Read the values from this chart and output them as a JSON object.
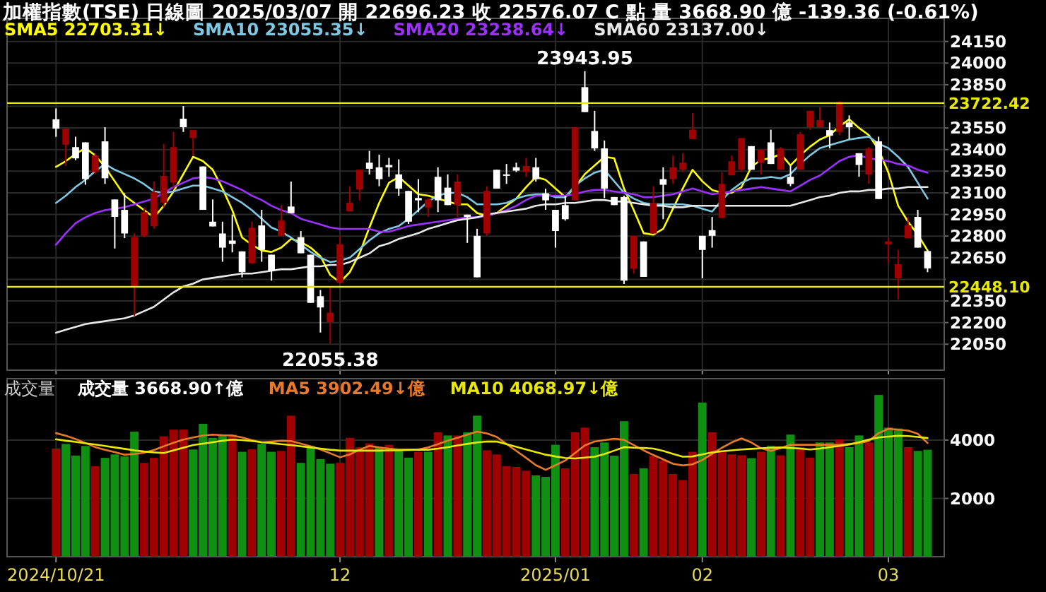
{
  "chart_data": [
    {
      "type": "candlestick",
      "title": "加權指數(TSE)   日線圖   2025/03/07   開 22696.23   收 22576.07 C 點   量 3668.90 億   -139.36 (-0.61%)",
      "categories": [
        "2024/10/21",
        null,
        null,
        null,
        null,
        null,
        null,
        null,
        null,
        null,
        null,
        null,
        null,
        null,
        null,
        null,
        null,
        null,
        null,
        null,
        null,
        null,
        null,
        null,
        null,
        null,
        null,
        null,
        null,
        "12",
        null,
        null,
        null,
        null,
        null,
        null,
        null,
        null,
        null,
        null,
        null,
        null,
        null,
        null,
        null,
        null,
        null,
        null,
        null,
        null,
        null,
        "2025/01",
        null,
        null,
        null,
        null,
        null,
        null,
        null,
        null,
        null,
        null,
        null,
        null,
        null,
        null,
        "02",
        null,
        null,
        null,
        null,
        null,
        null,
        null,
        null,
        null,
        null,
        null,
        null,
        null,
        null,
        null,
        null,
        null,
        null,
        "03",
        null,
        null,
        null,
        null
      ],
      "ohlc": [
        [
          23610,
          23686,
          23489,
          23545
        ],
        [
          23434,
          23545,
          23286,
          23545
        ],
        [
          23417,
          23489,
          23326,
          23339
        ],
        [
          23450,
          23450,
          23156,
          23195
        ],
        [
          23244,
          23375,
          23228,
          23358
        ],
        [
          23457,
          23555,
          23162,
          23201
        ],
        [
          23054,
          23054,
          22714,
          22933
        ],
        [
          22982,
          23097,
          22786,
          22818
        ],
        [
          22449,
          22818,
          22246,
          22792
        ],
        [
          22802,
          22998,
          22792,
          22966
        ],
        [
          22868,
          23178,
          22851,
          23103
        ],
        [
          23031,
          23440,
          22998,
          23218
        ],
        [
          23172,
          23522,
          23129,
          23417
        ],
        [
          23614,
          23702,
          23522,
          23555
        ],
        [
          23480,
          23535,
          23358,
          23535
        ],
        [
          23283,
          23283,
          22982,
          22982
        ],
        [
          22900,
          23054,
          22867,
          22867
        ],
        [
          22818,
          22900,
          22622,
          22720
        ],
        [
          22769,
          22949,
          22687,
          22746
        ],
        [
          22694,
          22694,
          22514,
          22550
        ],
        [
          22612,
          22900,
          22606,
          22858
        ],
        [
          22874,
          22982,
          22622,
          22704
        ],
        [
          22671,
          22671,
          22491,
          22557
        ],
        [
          22802,
          23015,
          22802,
          22907
        ],
        [
          23005,
          23178,
          22959,
          22959
        ],
        [
          22792,
          22835,
          22681,
          22681
        ],
        [
          22671,
          22671,
          22337,
          22337
        ],
        [
          22383,
          22426,
          22131,
          22305
        ],
        [
          22203,
          22442,
          22055.38,
          22269
        ],
        [
          22475,
          22802,
          22475,
          22743
        ],
        [
          22972,
          23146,
          22972,
          23031
        ],
        [
          23123,
          23260,
          23048,
          23260
        ],
        [
          23309,
          23391,
          23228,
          23267
        ],
        [
          23277,
          23365,
          23146,
          23195
        ],
        [
          23293,
          23342,
          23211,
          23277
        ],
        [
          23228,
          23332,
          23080,
          23129
        ],
        [
          23113,
          23113,
          22884,
          22900
        ],
        [
          23064,
          23195,
          22966,
          23048
        ],
        [
          22998,
          23064,
          22933,
          23054
        ],
        [
          23211,
          23277,
          22966,
          23048
        ],
        [
          23136,
          23228,
          23015,
          23015
        ],
        [
          23015,
          23228,
          22933,
          23178
        ],
        [
          22949,
          22949,
          22753,
          22933
        ],
        [
          22802,
          22851,
          22514,
          22514
        ],
        [
          22818,
          23146,
          22802,
          23113
        ],
        [
          23260,
          23260,
          23129,
          23129
        ],
        [
          23228,
          23300,
          23162,
          23218
        ],
        [
          23277,
          23309,
          23244,
          23254
        ],
        [
          23244,
          23342,
          23211,
          23286
        ],
        [
          23277,
          23342,
          23178,
          23195
        ],
        [
          23097,
          23129,
          22982,
          23048
        ],
        [
          22982,
          22982,
          22720,
          22835
        ],
        [
          23015,
          23080,
          22907,
          22917
        ],
        [
          23048,
          23555,
          23048,
          23555
        ],
        [
          23833,
          23943.95,
          23660,
          23660
        ],
        [
          23529,
          23669,
          23391,
          23408
        ],
        [
          23408,
          23463,
          23064,
          23129
        ],
        [
          23071,
          23071,
          23015,
          23015
        ],
        [
          23071,
          23080,
          22468,
          22491
        ],
        [
          22573,
          22802,
          22540,
          22802
        ],
        [
          22763,
          22763,
          22517,
          22517
        ],
        [
          22818,
          23146,
          22818,
          23031
        ],
        [
          23195,
          23277,
          22917,
          23156
        ],
        [
          23195,
          23358,
          23162,
          23277
        ],
        [
          23260,
          23375,
          23244,
          23309
        ],
        [
          23473,
          23653,
          23473,
          23538
        ],
        [
          22802,
          22802,
          22507,
          22704
        ],
        [
          22841,
          22933,
          22720,
          22802
        ],
        [
          22926,
          23244,
          22926,
          23162
        ],
        [
          23221,
          23358,
          23221,
          23319
        ],
        [
          23260,
          23480,
          23244,
          23480
        ],
        [
          23424,
          23424,
          23260,
          23260
        ],
        [
          23309,
          23398,
          23228,
          23398
        ],
        [
          23450,
          23538,
          23300,
          23300
        ],
        [
          23260,
          23417,
          23260,
          23408
        ],
        [
          23211,
          23293,
          23146,
          23162
        ],
        [
          23260,
          23522,
          23260,
          23506
        ],
        [
          23555,
          23669,
          23538,
          23669
        ],
        [
          23555,
          23692,
          23555,
          23604
        ],
        [
          23535,
          23588,
          23408,
          23496
        ],
        [
          23522,
          23735,
          23500,
          23730
        ],
        [
          23588,
          23637,
          23473,
          23555
        ],
        [
          23375,
          23375,
          23211,
          23293
        ],
        [
          23228,
          23417,
          23162,
          23408
        ],
        [
          23457,
          23489,
          23057,
          23057
        ],
        [
          22743,
          22786,
          22612,
          22763
        ],
        [
          22507,
          22704,
          22360,
          22606
        ],
        [
          22786,
          22933,
          22786,
          22874
        ],
        [
          22933,
          22982,
          22720,
          22720
        ],
        [
          22696.23,
          22704,
          22550,
          22576.07
        ]
      ],
      "colors": [
        "#ffffff",
        "#a00000",
        "#ffffff",
        "#ffffff",
        "#a00000",
        "#ffffff",
        "#ffffff",
        "#ffffff",
        "#a00000",
        "#a00000",
        "#a00000",
        "#a00000",
        "#a00000",
        "#ffffff",
        "#a00000",
        "#ffffff",
        "#ffffff",
        "#ffffff",
        "#ffffff",
        "#ffffff",
        "#a00000",
        "#ffffff",
        "#ffffff",
        "#a00000",
        "#ffffff",
        "#ffffff",
        "#ffffff",
        "#ffffff",
        "#a00000",
        "#a00000",
        "#a00000",
        "#a00000",
        "#ffffff",
        "#ffffff",
        "#ffffff",
        "#ffffff",
        "#ffffff",
        "#ffffff",
        "#a00000",
        "#ffffff",
        "#ffffff",
        "#a00000",
        "#ffffff",
        "#ffffff",
        "#a00000",
        "#ffffff",
        "#ffffff",
        "#ffffff",
        "#a00000",
        "#ffffff",
        "#ffffff",
        "#ffffff",
        "#ffffff",
        "#a00000",
        "#ffffff",
        "#ffffff",
        "#ffffff",
        "#ffffff",
        "#ffffff",
        "#a00000",
        "#ffffff",
        "#a00000",
        "#ffffff",
        "#a00000",
        "#a00000",
        "#a00000",
        "#ffffff",
        "#ffffff",
        "#a00000",
        "#a00000",
        "#a00000",
        "#ffffff",
        "#a00000",
        "#ffffff",
        "#a00000",
        "#ffffff",
        "#a00000",
        "#a00000",
        "#a00000",
        "#ffffff",
        "#a00000",
        "#ffffff",
        "#ffffff",
        "#a00000",
        "#ffffff",
        "#a00000",
        "#a00000",
        "#a00000",
        "#ffffff",
        "#ffffff"
      ],
      "series": [
        {
          "type": "line",
          "name": "SMA5 22703.31↓",
          "color": "#ffff00",
          "values": [
            23280,
            23320,
            23370,
            23410,
            23360,
            23280,
            23180,
            23080,
            23030,
            22980,
            22930,
            23010,
            23110,
            23230,
            23350,
            23320,
            23260,
            23130,
            22980,
            22790,
            22740,
            22700,
            22690,
            22720,
            22780,
            22760,
            22720,
            22660,
            22530,
            22480,
            22550,
            22680,
            22860,
            23030,
            23170,
            23210,
            23150,
            23090,
            23080,
            23060,
            23040,
            23020,
            23020,
            22960,
            22940,
            22960,
            23010,
            23060,
            23140,
            23210,
            23190,
            23130,
            23070,
            23140,
            23230,
            23290,
            23350,
            23340,
            23130,
            22980,
            22820,
            22810,
            22850,
            22990,
            23130,
            23260,
            23180,
            23120,
            23100,
            23100,
            23140,
            23280,
            23330,
            23340,
            23370,
            23290,
            23360,
            23420,
            23470,
            23500,
            23560,
            23610,
            23550,
            23500,
            23400,
            23240,
            23010,
            22900,
            22810,
            22700
          ]
        },
        {
          "type": "line",
          "name": "SMA10 23055.35↓",
          "color": "#7ec8e3",
          "values": [
            23030,
            23080,
            23140,
            23190,
            23250,
            23300,
            23260,
            23230,
            23200,
            23160,
            23110,
            23100,
            23110,
            23130,
            23150,
            23150,
            23130,
            23110,
            23070,
            23030,
            22980,
            22920,
            22860,
            22830,
            22790,
            22740,
            22690,
            22650,
            22620,
            22630,
            22650,
            22710,
            22770,
            22820,
            22850,
            22870,
            22920,
            22980,
            23040,
            23080,
            23100,
            23100,
            23070,
            23020,
            23020,
            23020,
            23030,
            23060,
            23080,
            23090,
            23090,
            23070,
            23070,
            23150,
            23200,
            23240,
            23260,
            23180,
            23100,
            23060,
            23030,
            23020,
            23020,
            23020,
            23020,
            23010,
            22990,
            22970,
            23050,
            23120,
            23170,
            23200,
            23200,
            23210,
            23200,
            23230,
            23300,
            23360,
            23410,
            23430,
            23450,
            23470,
            23480,
            23490,
            23440,
            23410,
            23350,
            23280,
            23170,
            23060
          ]
        },
        {
          "type": "line",
          "name": "SMA20 23238.64↓",
          "color": "#9b30ff",
          "values": [
            22740,
            22820,
            22890,
            22930,
            22960,
            22980,
            22990,
            23000,
            23020,
            23040,
            23060,
            23100,
            23140,
            23170,
            23200,
            23210,
            23200,
            23180,
            23150,
            23120,
            23080,
            23050,
            23010,
            22980,
            22960,
            22920,
            22900,
            22880,
            22860,
            22850,
            22850,
            22850,
            22850,
            22830,
            22830,
            22850,
            22870,
            22880,
            22890,
            22900,
            22910,
            22920,
            22930,
            22930,
            22940,
            22960,
            22980,
            23010,
            23050,
            23080,
            23080,
            23080,
            23080,
            23090,
            23110,
            23120,
            23120,
            23110,
            23100,
            23090,
            23070,
            23070,
            23080,
            23090,
            23110,
            23130,
            23110,
            23090,
            23100,
            23110,
            23120,
            23130,
            23140,
            23130,
            23120,
            23110,
            23150,
            23190,
            23220,
            23270,
            23320,
            23350,
            23360,
            23340,
            23330,
            23320,
            23300,
            23290,
            23260,
            23240
          ]
        },
        {
          "type": "line",
          "name": "SMA60 23137.00↓",
          "color": "#e8e8e8",
          "values": [
            22130,
            22150,
            22170,
            22190,
            22200,
            22210,
            22220,
            22230,
            22250,
            22280,
            22310,
            22360,
            22410,
            22450,
            22470,
            22500,
            22510,
            22520,
            22530,
            22540,
            22540,
            22550,
            22560,
            22570,
            22570,
            22580,
            22590,
            22590,
            22600,
            22600,
            22620,
            22650,
            22680,
            22730,
            22750,
            22780,
            22800,
            22820,
            22850,
            22870,
            22890,
            22910,
            22920,
            22930,
            22950,
            22960,
            22970,
            22980,
            22990,
            23010,
            23020,
            23020,
            23030,
            23030,
            23040,
            23050,
            23050,
            23040,
            23040,
            23030,
            23020,
            23010,
            23010,
            23000,
            23000,
            23010,
            23010,
            23010,
            23010,
            23010,
            23010,
            23010,
            23010,
            23010,
            23010,
            23010,
            23030,
            23050,
            23070,
            23080,
            23100,
            23110,
            23110,
            23120,
            23120,
            23130,
            23130,
            23140,
            23140,
            23140
          ]
        }
      ],
      "ylim": [
        21870,
        24310
      ],
      "yticks": [
        22050,
        22200,
        22350,
        {
          "value": 22500,
          "label": null
        },
        22650,
        22800,
        22950,
        23100,
        23250,
        23400,
        23550,
        {
          "value": 23700,
          "label": null
        },
        23850,
        24000,
        24150
      ],
      "ref_lines": [
        {
          "axis": "y",
          "value": 23722.42,
          "label": "23722.42",
          "color": "#e8e800"
        },
        {
          "axis": "y",
          "value": 22448.1,
          "label": "22448.10",
          "color": "#e8e800"
        }
      ],
      "annotations": [
        {
          "text": "23943.95",
          "y": 23943.95
        },
        {
          "text": "22055.38",
          "y": 22055.38
        }
      ],
      "grid": true,
      "legend": "top left",
      "tick_labels": "y"
    },
    {
      "type": "bar",
      "title": "成交量",
      "subtitle": "成交量 3668.90↑億",
      "categories": [
        "2024/10/21",
        null,
        null,
        null,
        null,
        null,
        null,
        null,
        null,
        null,
        null,
        null,
        null,
        null,
        null,
        null,
        null,
        null,
        null,
        null,
        null,
        null,
        null,
        null,
        null,
        null,
        null,
        null,
        null,
        "12",
        null,
        null,
        null,
        null,
        null,
        null,
        null,
        null,
        null,
        null,
        null,
        null,
        null,
        null,
        null,
        null,
        null,
        null,
        null,
        null,
        null,
        "2025/01",
        null,
        null,
        null,
        null,
        null,
        null,
        null,
        null,
        null,
        null,
        null,
        null,
        null,
        null,
        "02",
        null,
        null,
        null,
        null,
        null,
        null,
        null,
        null,
        null,
        null,
        null,
        null,
        null,
        null,
        null,
        null,
        null,
        null,
        "03",
        null,
        null,
        null,
        null
      ],
      "series": [
        {
          "type": "bar",
          "values": [
            3710,
            3870,
            3470,
            3800,
            3110,
            3390,
            3510,
            3440,
            4290,
            3220,
            3390,
            4130,
            4360,
            4360,
            3680,
            4560,
            4080,
            4160,
            4190,
            3600,
            3680,
            3870,
            3600,
            3630,
            4840,
            3220,
            3800,
            3350,
            3190,
            3220,
            4080,
            3760,
            3890,
            3760,
            3840,
            3630,
            3400,
            3600,
            3600,
            4270,
            4160,
            4160,
            4270,
            4840,
            3650,
            3510,
            3110,
            3080,
            2950,
            2790,
            2740,
            3840,
            3030,
            4270,
            4430,
            3760,
            3920,
            3470,
            4650,
            2840,
            3030,
            3470,
            3310,
            2840,
            2630,
            3600,
            5290,
            4270,
            3630,
            3510,
            3480,
            3380,
            3600,
            3800,
            3480,
            4190,
            3760,
            3400,
            3920,
            3920,
            4030,
            3760,
            4160,
            3920,
            5550,
            4430,
            4400,
            3760,
            3630,
            3670
          ],
          "colors": [
            "#a00000",
            "#109010",
            "#109010",
            "#109010",
            "#a00000",
            "#109010",
            "#109010",
            "#109010",
            "#109010",
            "#a00000",
            "#a00000",
            "#a00000",
            "#a00000",
            "#a00000",
            "#109010",
            "#109010",
            "#109010",
            "#109010",
            "#a00000",
            "#109010",
            "#a00000",
            "#109010",
            "#109010",
            "#a00000",
            "#a00000",
            "#109010",
            "#109010",
            "#109010",
            "#109010",
            "#a00000",
            "#a00000",
            "#a00000",
            "#a00000",
            "#109010",
            "#a00000",
            "#109010",
            "#109010",
            "#a00000",
            "#109010",
            "#a00000",
            "#109010",
            "#a00000",
            "#109010",
            "#109010",
            "#a00000",
            "#a00000",
            "#a00000",
            "#a00000",
            "#a00000",
            "#109010",
            "#109010",
            "#109010",
            "#a00000",
            "#a00000",
            "#a00000",
            "#109010",
            "#109010",
            "#109010",
            "#109010",
            "#a00000",
            "#109010",
            "#a00000",
            "#a00000",
            "#a00000",
            "#a00000",
            "#a00000",
            "#109010",
            "#a00000",
            "#a00000",
            "#a00000",
            "#a00000",
            "#109010",
            "#a00000",
            "#109010",
            "#a00000",
            "#109010",
            "#a00000",
            "#a00000",
            "#109010",
            "#109010",
            "#a00000",
            "#109010",
            "#109010",
            "#a00000",
            "#109010",
            "#109010",
            "#109010",
            "#a00000",
            "#109010",
            "#109010"
          ]
        },
        {
          "type": "line",
          "name": "MA5 3902.49↓億",
          "color": "#e8792a",
          "values": [
            4240,
            4150,
            4040,
            3900,
            3760,
            3670,
            3590,
            3500,
            3520,
            3570,
            3660,
            3790,
            3910,
            4020,
            4090,
            4160,
            4190,
            4170,
            4160,
            4090,
            4000,
            3920,
            3950,
            3980,
            3970,
            3880,
            3790,
            3680,
            3550,
            3410,
            3510,
            3670,
            3800,
            3750,
            3710,
            3680,
            3680,
            3680,
            3750,
            3860,
            3980,
            4080,
            4190,
            4290,
            4230,
            4110,
            3870,
            3630,
            3390,
            3140,
            2980,
            3140,
            3300,
            3560,
            3820,
            3950,
            4000,
            4050,
            4010,
            3830,
            3650,
            3490,
            3340,
            3190,
            3130,
            3170,
            3320,
            3530,
            3740,
            3920,
            4060,
            3920,
            3720,
            3630,
            3730,
            3840,
            3840,
            3840,
            3840,
            3840,
            3840,
            3870,
            3900,
            3970,
            4240,
            4390,
            4360,
            4330,
            4220,
            3900
          ]
        },
        {
          "type": "line",
          "name": "MA10 4068.97↓億",
          "color": "#e8e800",
          "values": [
            4030,
            3980,
            3940,
            3890,
            3850,
            3800,
            3750,
            3700,
            3650,
            3610,
            3580,
            3560,
            3650,
            3740,
            3830,
            3880,
            3930,
            3980,
            4020,
            4000,
            3970,
            3930,
            3900,
            3860,
            3830,
            3790,
            3750,
            3710,
            3670,
            3640,
            3640,
            3640,
            3640,
            3640,
            3650,
            3650,
            3660,
            3670,
            3670,
            3710,
            3760,
            3820,
            3870,
            3920,
            3950,
            3950,
            3860,
            3770,
            3680,
            3590,
            3500,
            3440,
            3390,
            3370,
            3400,
            3430,
            3520,
            3640,
            3760,
            3740,
            3730,
            3710,
            3630,
            3530,
            3430,
            3440,
            3510,
            3580,
            3620,
            3650,
            3680,
            3700,
            3720,
            3740,
            3750,
            3730,
            3710,
            3680,
            3710,
            3760,
            3800,
            3850,
            3930,
            4020,
            4090,
            4120,
            4150,
            4140,
            4110,
            4070
          ]
        }
      ],
      "ylim": [
        0,
        6110
      ],
      "yticks": [
        2000,
        4000
      ],
      "grid": true,
      "legend": "top left"
    }
  ]
}
